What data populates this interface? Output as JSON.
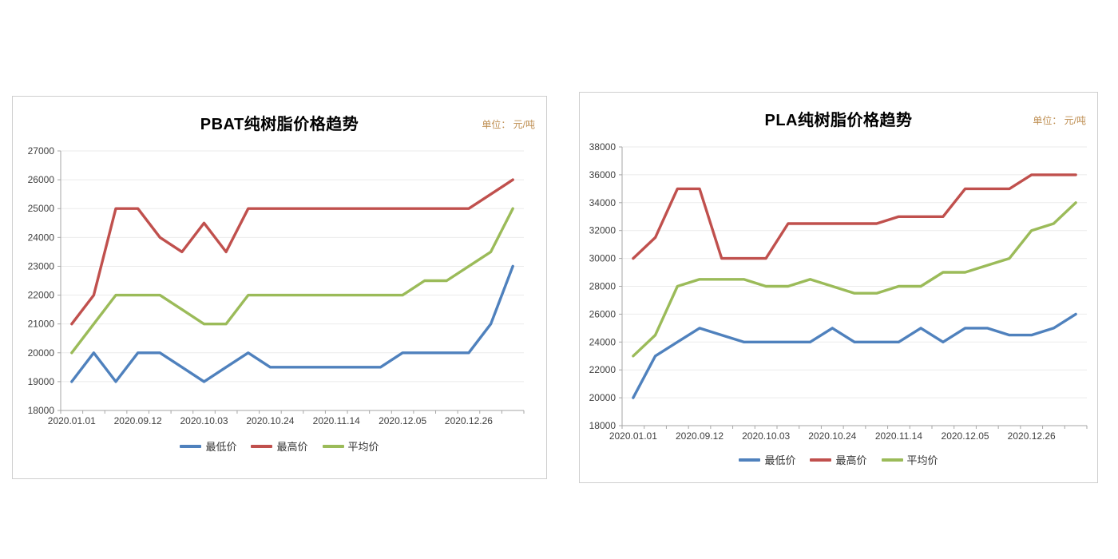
{
  "style": {
    "axis_color": "#a6a6a6",
    "grid_color": "#ebebeb",
    "tick_text_color": "#3f3f3f",
    "unit_text_color": "#bf8f53"
  },
  "chart_data": [
    {
      "type": "line",
      "title": "PBAT纯树脂价格趋势",
      "unit_label": "单位： 元/吨",
      "y_axis": {
        "min": 18000,
        "max": 27000,
        "step": 1000
      },
      "x_tick_labels": [
        "2020.01.01",
        "2020.09.12",
        "2020.10.03",
        "2020.10.24",
        "2020.11.14",
        "2020.12.05",
        "2020.12.26"
      ],
      "x_label_positions": [
        0,
        3,
        6,
        9,
        12,
        15,
        18
      ],
      "num_points": 21,
      "grid": true,
      "legend_position": "bottom",
      "series": [
        {
          "name": "最低价",
          "color": "#4f81bd",
          "values": [
            19000,
            20000,
            19000,
            20000,
            20000,
            19500,
            19000,
            19500,
            20000,
            19500,
            19500,
            19500,
            19500,
            19500,
            19500,
            20000,
            20000,
            20000,
            20000,
            21000,
            23000
          ]
        },
        {
          "name": "最高价",
          "color": "#c0504d",
          "values": [
            21000,
            22000,
            25000,
            25000,
            24000,
            23500,
            24500,
            23500,
            25000,
            25000,
            25000,
            25000,
            25000,
            25000,
            25000,
            25000,
            25000,
            25000,
            25000,
            25500,
            26000
          ]
        },
        {
          "name": "平均价",
          "color": "#9bbb59",
          "values": [
            20000,
            21000,
            22000,
            22000,
            22000,
            21500,
            21000,
            21000,
            22000,
            22000,
            22000,
            22000,
            22000,
            22000,
            22000,
            22000,
            22500,
            22500,
            23000,
            23500,
            25000
          ]
        }
      ]
    },
    {
      "type": "line",
      "title": "PLA纯树脂价格趋势",
      "unit_label": "单位： 元/吨",
      "y_axis": {
        "min": 18000,
        "max": 38000,
        "step": 2000
      },
      "x_tick_labels": [
        "2020.01.01",
        "2020.09.12",
        "2020.10.03",
        "2020.10.24",
        "2020.11.14",
        "2020.12.05",
        "2020.12.26"
      ],
      "x_label_positions": [
        0,
        3,
        6,
        9,
        12,
        15,
        18
      ],
      "num_points": 21,
      "grid": true,
      "legend_position": "bottom",
      "series": [
        {
          "name": "最低价",
          "color": "#4f81bd",
          "values": [
            20000,
            23000,
            24000,
            25000,
            24500,
            24000,
            24000,
            24000,
            24000,
            25000,
            24000,
            24000,
            24000,
            25000,
            24000,
            25000,
            25000,
            24500,
            24500,
            25000,
            26000
          ]
        },
        {
          "name": "最高价",
          "color": "#c0504d",
          "values": [
            30000,
            31500,
            35000,
            35000,
            30000,
            30000,
            30000,
            32500,
            32500,
            32500,
            32500,
            32500,
            33000,
            33000,
            33000,
            35000,
            35000,
            35000,
            36000,
            36000,
            36000
          ]
        },
        {
          "name": "平均价",
          "color": "#9bbb59",
          "values": [
            23000,
            24500,
            28000,
            28500,
            28500,
            28500,
            28000,
            28000,
            28500,
            28000,
            27500,
            27500,
            28000,
            28000,
            29000,
            29000,
            29500,
            30000,
            32000,
            32500,
            34000
          ]
        }
      ]
    }
  ]
}
